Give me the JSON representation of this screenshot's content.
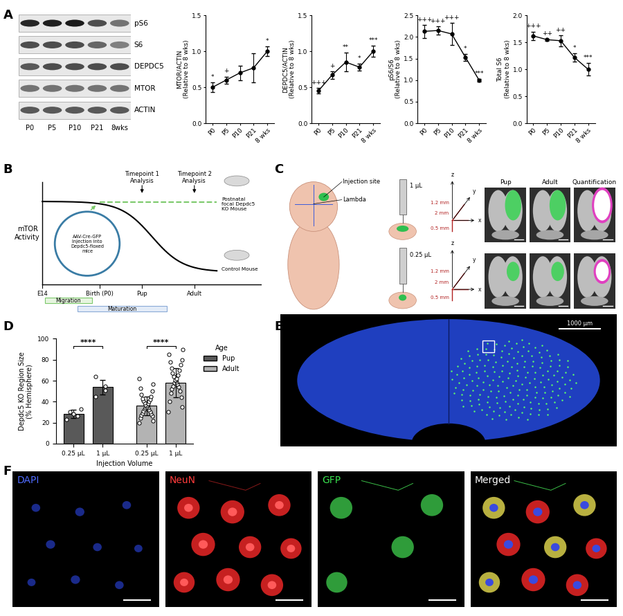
{
  "chart_data": [
    {
      "type": "line",
      "y_label": "MTOR/ACTIN\n(Relative to 8 wks)",
      "categories": [
        "P0",
        "P5",
        "P10",
        "P21",
        "8 wks"
      ],
      "values": [
        0.5,
        0.6,
        0.7,
        0.77,
        1.0
      ],
      "errors": [
        0.07,
        0.05,
        0.1,
        0.2,
        0.07
      ],
      "annotations": [
        "*",
        "+",
        null,
        null,
        "*"
      ],
      "color": "#000000",
      "marker": "circle",
      "line_style": "solid",
      "ylim": [
        0,
        1.5
      ],
      "yticks": [
        {
          "value": 0,
          "label": "0.0"
        },
        {
          "value": 0.5,
          "label": "0.5"
        },
        {
          "value": 1.0,
          "label": "1.0"
        },
        {
          "value": 1.5,
          "label": "1.5"
        }
      ]
    },
    {
      "type": "line",
      "y_label": "DEPDC5/ACTIN\n(Relative to 8 wks)",
      "categories": [
        "P0",
        "P5",
        "P10",
        "P21",
        "8 wks"
      ],
      "values": [
        0.45,
        0.67,
        0.85,
        0.78,
        1.0
      ],
      "errors": [
        0.04,
        0.05,
        0.13,
        0.05,
        0.08
      ],
      "annotations": [
        "+++",
        "+",
        "**",
        "*",
        "***"
      ],
      "color": "#000000",
      "marker": "circle",
      "line_style": "solid",
      "ylim": [
        0,
        1.5
      ],
      "yticks": [
        {
          "value": 0,
          "label": "0.0"
        },
        {
          "value": 0.5,
          "label": "0.5"
        },
        {
          "value": 1.0,
          "label": "1.0"
        },
        {
          "value": 1.5,
          "label": "1.5"
        }
      ]
    },
    {
      "type": "line",
      "y_label": "pS6/S6\n(Relative to 8 wks)",
      "categories": [
        "P0",
        "P5",
        "P10",
        "P21",
        "8 wks"
      ],
      "values": [
        2.13,
        2.15,
        2.07,
        1.53,
        1.0
      ],
      "errors": [
        0.15,
        0.1,
        0.25,
        0.08,
        0.03
      ],
      "annotations": [
        "+++",
        "+++",
        "+++",
        "*",
        "***"
      ],
      "color": "#000000",
      "marker": "circle",
      "line_style": "solid",
      "ylim": [
        0,
        2.5
      ],
      "yticks": [
        {
          "value": 0,
          "label": "0.0"
        },
        {
          "value": 0.5,
          "label": "0.5"
        },
        {
          "value": 1.0,
          "label": "1.0"
        },
        {
          "value": 1.5,
          "label": "1.5"
        },
        {
          "value": 2.0,
          "label": "2.0"
        },
        {
          "value": 2.5,
          "label": "2.5"
        }
      ]
    },
    {
      "type": "line",
      "y_label": "Total S6\n(Relative to 8 wks)",
      "categories": [
        "P0",
        "P5",
        "P10",
        "P21",
        "8 wks"
      ],
      "values": [
        1.62,
        1.55,
        1.53,
        1.22,
        1.0
      ],
      "errors": [
        0.08,
        0.02,
        0.1,
        0.08,
        0.12
      ],
      "annotations": [
        "+++",
        "++",
        "++",
        "*",
        "***"
      ],
      "color": "#000000",
      "marker": "circle",
      "line_style": "solid",
      "ylim": [
        0,
        2.0
      ],
      "yticks": [
        {
          "value": 0,
          "label": "0.0"
        },
        {
          "value": 0.5,
          "label": "0.5"
        },
        {
          "value": 1.0,
          "label": "1.0"
        },
        {
          "value": 1.5,
          "label": "1.5"
        },
        {
          "value": 2.0,
          "label": "2.0"
        }
      ]
    },
    {
      "type": "bar",
      "y_label": "Depdc5 KO Region Size\n(% Hemisphere)",
      "x_label": "Injection Volume",
      "categories": [
        "0.25 μL",
        "1 μL"
      ],
      "legend_title": "Age",
      "legend": "upper left",
      "series": [
        {
          "name": "Pup",
          "color": "#595959",
          "values": [
            28,
            54
          ],
          "errors": [
            4,
            7
          ],
          "significance": "****",
          "points": [
            [
              23,
              26,
              28,
              30,
              33
            ],
            [
              45,
              51,
              55,
              64
            ]
          ]
        },
        {
          "name": "Adult",
          "color": "#b3b3b3",
          "values": [
            36,
            58
          ],
          "errors": [
            9,
            14
          ],
          "significance": "****",
          "points": [
            [
              20,
              22,
              24,
              26,
              27,
              28,
              29,
              30,
              31,
              32,
              33,
              34,
              34,
              35,
              36,
              37,
              38,
              39,
              40,
              41,
              42,
              43,
              45,
              47,
              50,
              53,
              57,
              62
            ],
            [
              30,
              35,
              40,
              44,
              48,
              50,
              52,
              54,
              55,
              57,
              58,
              59,
              60,
              61,
              62,
              64,
              65,
              67,
              70,
              72,
              75,
              78,
              80,
              85,
              90
            ]
          ]
        }
      ],
      "ylim": [
        0,
        100
      ],
      "yticks": [
        0,
        20,
        40,
        60,
        80,
        100
      ]
    }
  ],
  "figure": {
    "panel_labels": [
      "A",
      "B",
      "C",
      "D",
      "E",
      "F"
    ],
    "blot": {
      "rows": [
        "pS6",
        "S6",
        "DEPDC5",
        "MTOR",
        "ACTIN"
      ],
      "lanes": [
        "P0",
        "P5",
        "P10",
        "P21",
        "8wks"
      ]
    },
    "timeline": {
      "y_label": "mTOR\nActivity",
      "x_labels": [
        "E14",
        "Birth (P0)",
        "Pup",
        "Adult"
      ],
      "timepoints": [
        "Timepoint 1\nAnalysis",
        "Timepoint 2\nAnalysis"
      ],
      "injection": "AAV-Cre-GFP\nInjection into\nDepdc5-floxed\nmice",
      "ko_mouse": "Postnatal\nfocal Depdc5\nKO Mouse",
      "control_mouse": "Control Mouse",
      "phases": [
        "Migration",
        "Maturation"
      ]
    },
    "injection": {
      "site": "Injection site",
      "lambda": "Lambda",
      "volumes": [
        "1 μL",
        "0.25 μL"
      ],
      "axes": [
        "z",
        "y",
        "x"
      ],
      "distances": [
        "1.2 mm",
        "2 mm",
        "0.5 mm"
      ],
      "columns": [
        "Pup",
        "Adult",
        "Quantification"
      ]
    },
    "section": {
      "scale_bar": "1000 μm"
    },
    "stains": [
      "DAPI",
      "NeuN",
      "GFP",
      "Merged"
    ]
  }
}
